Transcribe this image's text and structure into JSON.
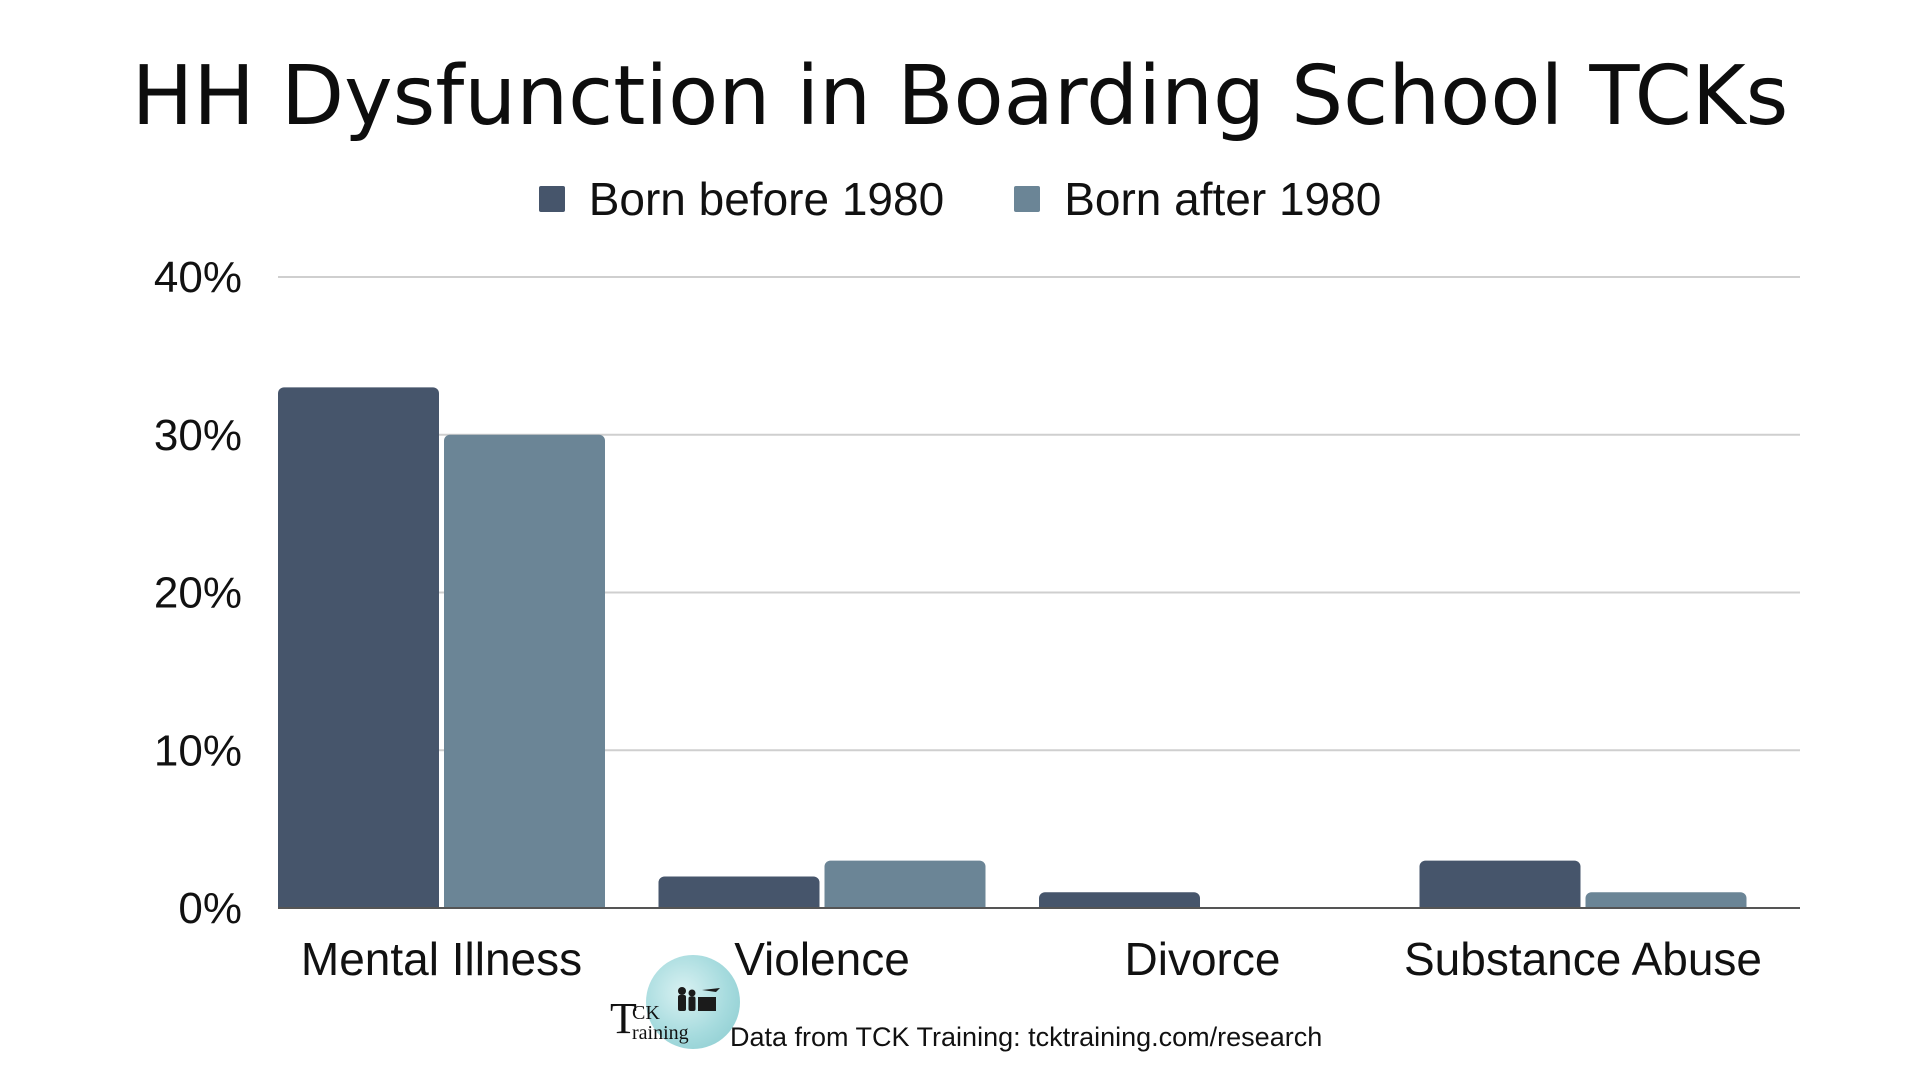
{
  "colors": {
    "series_before": "#46556b",
    "series_after": "#6b8596",
    "grid": "#cfcfcf",
    "baseline": "#555555"
  },
  "footer": {
    "logo_letter": "T",
    "logo_ck": "CK",
    "logo_raining": "raining",
    "source_text": "Data from TCK Training: tcktraining.com/research"
  },
  "chart_data": {
    "type": "bar",
    "title": "HH Dysfunction in Boarding School TCKs",
    "xlabel": "",
    "ylabel": "",
    "categories": [
      "Mental Illness",
      "Violence",
      "Divorce",
      "Substance Abuse"
    ],
    "series": [
      {
        "name": "Born before 1980",
        "values": [
          33,
          2,
          1,
          3
        ]
      },
      {
        "name": "Born after 1980",
        "values": [
          30,
          3,
          0,
          1
        ]
      }
    ],
    "ylim": [
      0,
      40
    ],
    "yticks": [
      0,
      10,
      20,
      30,
      40
    ],
    "ytick_labels": [
      "0%",
      "10%",
      "20%",
      "30%",
      "40%"
    ],
    "grid": true,
    "legend_position": "top-center"
  }
}
